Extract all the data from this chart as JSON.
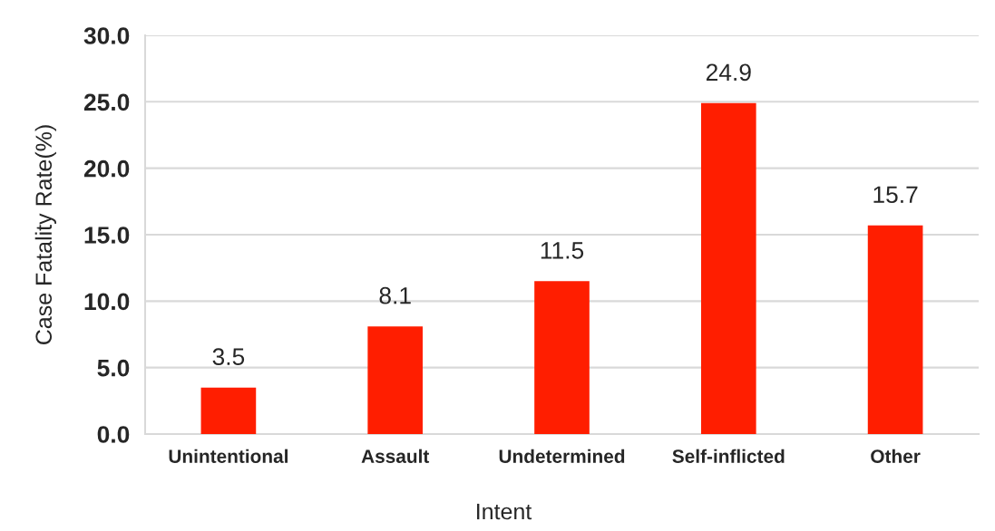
{
  "chart_data": {
    "type": "bar",
    "xlabel": "Intent",
    "ylabel": "Case Fatality Rate(%)",
    "categories": [
      "Unintentional",
      "Assault",
      "Undetermined",
      "Self-inflicted",
      "Other"
    ],
    "values": [
      3.5,
      8.1,
      11.5,
      24.9,
      15.7
    ],
    "color": "#ff1e00",
    "ylim": [
      0,
      30
    ],
    "yticks": [
      {
        "value": 0,
        "label": "0.0"
      },
      {
        "value": 5,
        "label": "5.0"
      },
      {
        "value": 10,
        "label": "10.0"
      },
      {
        "value": 15,
        "label": "15.0"
      },
      {
        "value": 20,
        "label": "20.0"
      },
      {
        "value": 25,
        "label": "25.0"
      },
      {
        "value": 30,
        "label": "30.0"
      }
    ],
    "grid": "y",
    "data_labels": true
  }
}
